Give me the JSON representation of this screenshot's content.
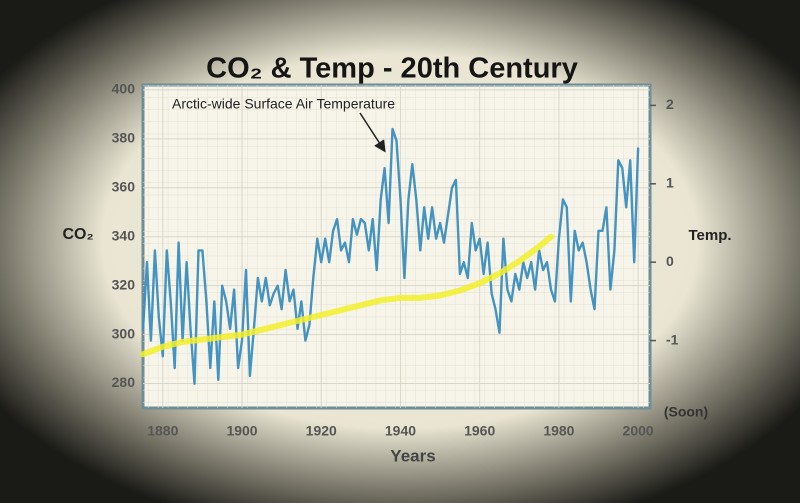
{
  "chart_data": {
    "type": "line",
    "title": "CO₂ & Temp - 20th Century",
    "annotation": "Arctic-wide Surface Air Temperature",
    "x_label": "Years",
    "y_label": "CO₂",
    "y2_label": "Temp.",
    "y2_note": "(Soon)",
    "xlim": [
      1875,
      2003
    ],
    "xticks": [
      1880,
      1900,
      1920,
      1940,
      1960,
      1980,
      2000
    ],
    "ylim": [
      270,
      402
    ],
    "yticks": [
      280,
      300,
      320,
      340,
      360,
      380,
      400
    ],
    "y2lim": [
      -1.86,
      2.26
    ],
    "y2ticks": [
      {
        "value": 2,
        "label": "2"
      },
      {
        "value": 1,
        "label": "1"
      },
      {
        "value": 0,
        "label": "0"
      },
      {
        "value": -1,
        "label": "-1"
      }
    ],
    "grid": true,
    "series": [
      {
        "name": "Arctic-wide Surface Air Temperature",
        "color": "#3a8dbf",
        "axis": "y2",
        "x": [
          1875,
          1876,
          1877,
          1878,
          1879,
          1880,
          1881,
          1882,
          1883,
          1884,
          1885,
          1886,
          1887,
          1888,
          1889,
          1890,
          1891,
          1892,
          1893,
          1894,
          1895,
          1896,
          1897,
          1898,
          1899,
          1900,
          1901,
          1902,
          1903,
          1904,
          1905,
          1906,
          1907,
          1908,
          1909,
          1910,
          1911,
          1912,
          1913,
          1914,
          1915,
          1916,
          1917,
          1918,
          1919,
          1920,
          1921,
          1922,
          1923,
          1924,
          1925,
          1926,
          1927,
          1928,
          1929,
          1930,
          1931,
          1932,
          1933,
          1934,
          1935,
          1936,
          1937,
          1938,
          1939,
          1940,
          1941,
          1942,
          1943,
          1944,
          1945,
          1946,
          1947,
          1948,
          1949,
          1950,
          1951,
          1952,
          1953,
          1954,
          1955,
          1956,
          1957,
          1958,
          1959,
          1960,
          1961,
          1962,
          1963,
          1964,
          1965,
          1966,
          1967,
          1968,
          1969,
          1970,
          1971,
          1972,
          1973,
          1974,
          1975,
          1976,
          1977,
          1978,
          1979,
          1980,
          1981,
          1982,
          1983,
          1984,
          1985,
          1986,
          1987,
          1988,
          1989,
          1990,
          1991,
          1992,
          1993,
          1994,
          1995,
          1996,
          1997,
          1998,
          1999,
          2000
        ],
        "values": [
          -0.86,
          0,
          -1,
          0.15,
          -0.7,
          -1.2,
          0.15,
          -0.5,
          -1.35,
          0.25,
          -1,
          0,
          -0.85,
          -1.55,
          0.15,
          0.15,
          -0.5,
          -1.35,
          -0.5,
          -1.5,
          -0.3,
          -0.5,
          -0.85,
          -0.35,
          -1.35,
          -1,
          -0.1,
          -1.45,
          -0.85,
          -0.2,
          -0.5,
          -0.2,
          -0.55,
          -0.4,
          -0.3,
          -0.6,
          -0.1,
          -0.5,
          -0.35,
          -0.85,
          -0.5,
          -1,
          -0.8,
          -0.2,
          0.3,
          0,
          0.3,
          0,
          0.4,
          0.55,
          0.15,
          0.25,
          0,
          0.55,
          0.35,
          0.55,
          0.5,
          0.15,
          0.55,
          -0.1,
          0.8,
          1.2,
          0.5,
          1.7,
          1.55,
          0.8,
          -0.2,
          0.8,
          1.25,
          0.8,
          0.15,
          0.7,
          0.3,
          0.7,
          0.3,
          0.5,
          0.25,
          0.6,
          0.95,
          1.05,
          -0.15,
          0,
          -0.2,
          0.5,
          0.15,
          0.3,
          -0.15,
          0.25,
          -0.4,
          -0.6,
          -0.9,
          0.3,
          -0.35,
          -0.5,
          -0.15,
          -0.35,
          0,
          -0.2,
          0,
          -0.35,
          0.15,
          -0.1,
          0,
          -0.35,
          -0.5,
          0.3,
          0.8,
          0.7,
          -0.5,
          0.4,
          0.15,
          0.25,
          0,
          -0.35,
          -0.6,
          0.4,
          0.4,
          0.7,
          -0.35,
          0.15,
          1.3,
          1.2,
          0.7,
          1.3,
          0,
          1.45
        ]
      },
      {
        "name": "CO₂",
        "color": "#f2ef2a",
        "axis": "y",
        "x": [
          1875,
          1880,
          1885,
          1890,
          1895,
          1900,
          1905,
          1910,
          1915,
          1920,
          1925,
          1930,
          1935,
          1940,
          1945,
          1950,
          1955,
          1960,
          1965,
          1970,
          1975,
          1978
        ],
        "values": [
          292,
          295,
          297,
          298,
          299,
          300,
          302,
          304,
          306,
          308,
          310,
          312,
          314,
          315,
          315,
          316,
          318,
          321,
          325,
          330,
          336,
          340
        ]
      }
    ]
  }
}
